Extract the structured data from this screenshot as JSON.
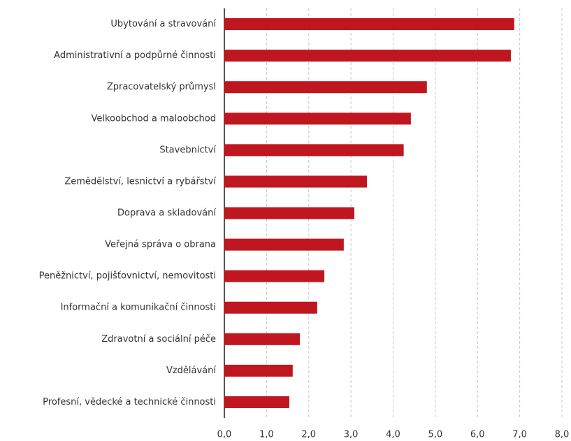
{
  "chart_data": {
    "type": "barh",
    "categories": [
      "Ubytování a stravování",
      "Administrativní a podpůrné činnosti",
      "Zpracovatelský průmysl",
      "Velkoobchod a maloobchod",
      "Stavebnictví",
      "Zemědělství, lesnictví a rybářství",
      "Doprava a skladování",
      "Veřejná správa o obrana",
      "Peněžnictví,  pojišťovnictví, nemovitosti",
      "Informační a komunikační činnosti",
      "Zdravotní a sociální péče",
      "Vzdělávání",
      "Profesní, vědecké a technické činnosti"
    ],
    "values": [
      6.87,
      6.79,
      4.8,
      4.42,
      4.25,
      3.38,
      3.08,
      2.83,
      2.37,
      2.2,
      1.79,
      1.62,
      1.54
    ],
    "color": "#c0161f",
    "xlim": [
      0,
      8
    ],
    "xticks": [
      {
        "value": 0,
        "label": "0,0"
      },
      {
        "value": 1,
        "label": "1,0"
      },
      {
        "value": 2,
        "label": "2,0"
      },
      {
        "value": 3,
        "label": "3,0"
      },
      {
        "value": 4,
        "label": "4,0"
      },
      {
        "value": 5,
        "label": "5,0"
      },
      {
        "value": 6,
        "label": "6,0"
      },
      {
        "value": 7,
        "label": "7,0"
      },
      {
        "value": 8,
        "label": "8,0"
      }
    ],
    "grid": true
  }
}
